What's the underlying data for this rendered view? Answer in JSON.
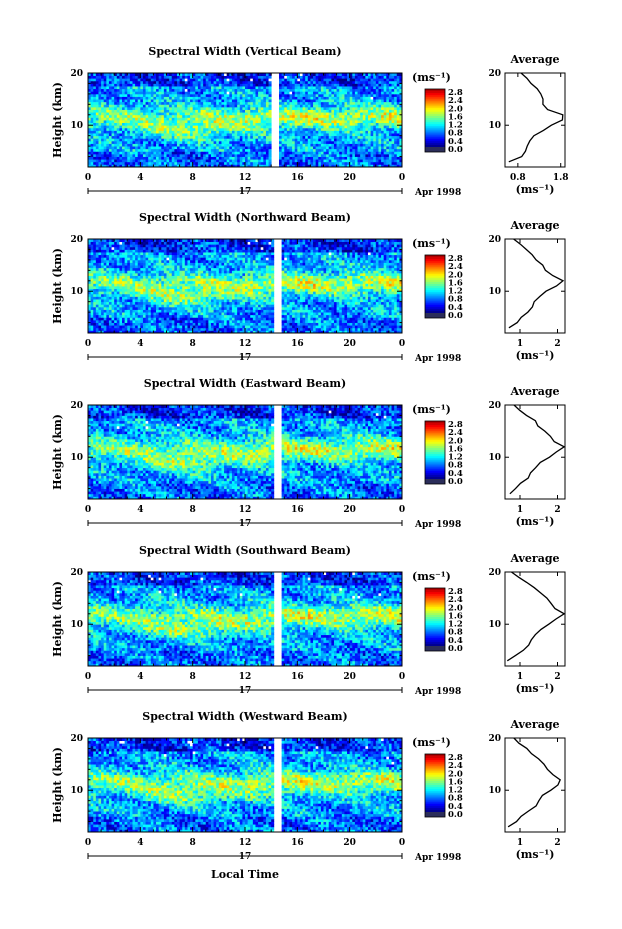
{
  "chart_data": [
    {
      "type": "heatmap",
      "title": "Spectral Width (Vertical Beam)",
      "ylabel": "Height (km)",
      "xlabel": "",
      "x_ticks": [
        "0",
        "4",
        "8",
        "12",
        "16",
        "20",
        "0"
      ],
      "y_ticks": [
        "20",
        "10"
      ],
      "xlim": [
        0,
        24
      ],
      "ylim": [
        2,
        20
      ],
      "date_label": "17",
      "date_suffix": "Apr 1998",
      "data_gap_hours": [
        14.0,
        14.6
      ],
      "enhanced_band_km": 11.5,
      "colorbar": {
        "unit": "(ms⁻¹)",
        "ticks": [
          "2.8",
          "2.4",
          "2.0",
          "1.6",
          "1.2",
          "0.8",
          "0.4",
          "0.0"
        ]
      },
      "average": {
        "title": "Average",
        "x_ticks": [
          "0.8",
          "1.8"
        ],
        "xlim": [
          0.5,
          1.9
        ],
        "xlabel": "(ms⁻¹)",
        "heights": [
          3,
          4,
          5,
          6,
          7,
          8,
          9,
          10,
          11,
          12,
          13,
          14,
          15,
          16,
          17,
          18,
          19,
          20
        ],
        "values": [
          0.6,
          0.9,
          1.0,
          1.05,
          1.1,
          1.2,
          1.4,
          1.6,
          1.8,
          1.85,
          1.5,
          1.35,
          1.4,
          1.3,
          1.25,
          1.1,
          1.0,
          0.9
        ]
      }
    },
    {
      "type": "heatmap",
      "title": "Spectral Width (Northward Beam)",
      "ylabel": "Height (km)",
      "xlabel": "",
      "x_ticks": [
        "0",
        "4",
        "8",
        "12",
        "16",
        "20",
        "0"
      ],
      "y_ticks": [
        "20",
        "10"
      ],
      "xlim": [
        0,
        24
      ],
      "ylim": [
        2,
        20
      ],
      "date_label": "17",
      "date_suffix": "Apr 1998",
      "data_gap_hours": [
        14.2,
        14.8
      ],
      "enhanced_band_km": 11.5,
      "colorbar": {
        "unit": "(ms⁻¹)",
        "ticks": [
          "2.8",
          "2.4",
          "2.0",
          "1.6",
          "1.2",
          "0.8",
          "0.4",
          "0.0"
        ]
      },
      "average": {
        "title": "Average",
        "x_ticks": [
          "1",
          "2"
        ],
        "xlim": [
          0.6,
          2.2
        ],
        "xlabel": "(ms⁻¹)",
        "heights": [
          3,
          4,
          5,
          6,
          7,
          8,
          9,
          10,
          11,
          12,
          13,
          14,
          15,
          16,
          17,
          18,
          19,
          20
        ],
        "values": [
          0.7,
          0.9,
          1.05,
          1.2,
          1.3,
          1.35,
          1.5,
          1.7,
          2.0,
          2.15,
          1.9,
          1.7,
          1.6,
          1.4,
          1.3,
          1.2,
          1.0,
          0.8
        ]
      }
    },
    {
      "type": "heatmap",
      "title": "Spectral Width (Eastward Beam)",
      "ylabel": "Height (km)",
      "xlabel": "",
      "x_ticks": [
        "0",
        "4",
        "8",
        "12",
        "16",
        "20",
        "0"
      ],
      "y_ticks": [
        "20",
        "10"
      ],
      "xlim": [
        0,
        24
      ],
      "ylim": [
        2,
        20
      ],
      "date_label": "17",
      "date_suffix": "Apr 1998",
      "data_gap_hours": [
        14.2,
        14.8
      ],
      "enhanced_band_km": 11.5,
      "colorbar": {
        "unit": "(ms⁻¹)",
        "ticks": [
          "2.8",
          "2.4",
          "2.0",
          "1.6",
          "1.2",
          "0.8",
          "0.4",
          "0.0"
        ]
      },
      "average": {
        "title": "Average",
        "x_ticks": [
          "1",
          "2"
        ],
        "xlim": [
          0.6,
          2.2
        ],
        "xlabel": "(ms⁻¹)",
        "heights": [
          3,
          4,
          5,
          6,
          7,
          8,
          9,
          10,
          11,
          12,
          13,
          14,
          15,
          16,
          17,
          18,
          19,
          20
        ],
        "values": [
          0.7,
          0.9,
          1.05,
          1.2,
          1.3,
          1.4,
          1.55,
          1.8,
          2.0,
          2.15,
          1.9,
          1.8,
          1.7,
          1.5,
          1.4,
          1.2,
          1.0,
          0.8
        ]
      }
    },
    {
      "type": "heatmap",
      "title": "Spectral Width (Southward Beam)",
      "ylabel": "Height (km)",
      "xlabel": "",
      "x_ticks": [
        "0",
        "4",
        "8",
        "12",
        "16",
        "20",
        "0"
      ],
      "y_ticks": [
        "20",
        "10"
      ],
      "xlim": [
        0,
        24
      ],
      "ylim": [
        2,
        20
      ],
      "date_label": "17",
      "date_suffix": "Apr 1998",
      "data_gap_hours": [
        14.2,
        14.8
      ],
      "enhanced_band_km": 11.5,
      "colorbar": {
        "unit": "(ms⁻¹)",
        "ticks": [
          "2.8",
          "2.4",
          "2.0",
          "1.6",
          "1.2",
          "0.8",
          "0.4",
          "0.0"
        ]
      },
      "average": {
        "title": "Average",
        "x_ticks": [
          "1",
          "2"
        ],
        "xlim": [
          0.6,
          2.2
        ],
        "xlabel": "(ms⁻¹)",
        "heights": [
          3,
          4,
          5,
          6,
          7,
          8,
          9,
          10,
          11,
          12,
          13,
          14,
          15,
          16,
          17,
          18,
          19,
          20
        ],
        "values": [
          0.7,
          0.9,
          1.05,
          1.2,
          1.3,
          1.4,
          1.55,
          1.8,
          2.0,
          2.15,
          1.95,
          1.8,
          1.7,
          1.55,
          1.4,
          1.2,
          1.0,
          0.8
        ]
      }
    },
    {
      "type": "heatmap",
      "title": "Spectral Width (Westward Beam)",
      "ylabel": "Height (km)",
      "xlabel": "Local Time",
      "x_ticks": [
        "0",
        "4",
        "8",
        "12",
        "16",
        "20",
        "0"
      ],
      "y_ticks": [
        "20",
        "10"
      ],
      "xlim": [
        0,
        24
      ],
      "ylim": [
        2,
        20
      ],
      "date_label": "17",
      "date_suffix": "Apr 1998",
      "data_gap_hours": [
        14.2,
        14.8
      ],
      "enhanced_band_km": 11.5,
      "colorbar": {
        "unit": "(ms⁻¹)",
        "ticks": [
          "2.8",
          "2.4",
          "2.0",
          "1.6",
          "1.2",
          "0.8",
          "0.4",
          "0.0"
        ]
      },
      "average": {
        "title": "Average",
        "x_ticks": [
          "1",
          "2"
        ],
        "xlim": [
          0.6,
          2.2
        ],
        "xlabel": "(ms⁻¹)",
        "heights": [
          3,
          4,
          5,
          6,
          7,
          8,
          9,
          10,
          11,
          12,
          13,
          14,
          15,
          16,
          17,
          18,
          19,
          20
        ],
        "values": [
          0.7,
          0.9,
          1.05,
          1.25,
          1.4,
          1.5,
          1.6,
          1.8,
          2.0,
          2.1,
          1.9,
          1.75,
          1.6,
          1.5,
          1.3,
          1.15,
          1.0,
          0.8
        ]
      }
    }
  ]
}
